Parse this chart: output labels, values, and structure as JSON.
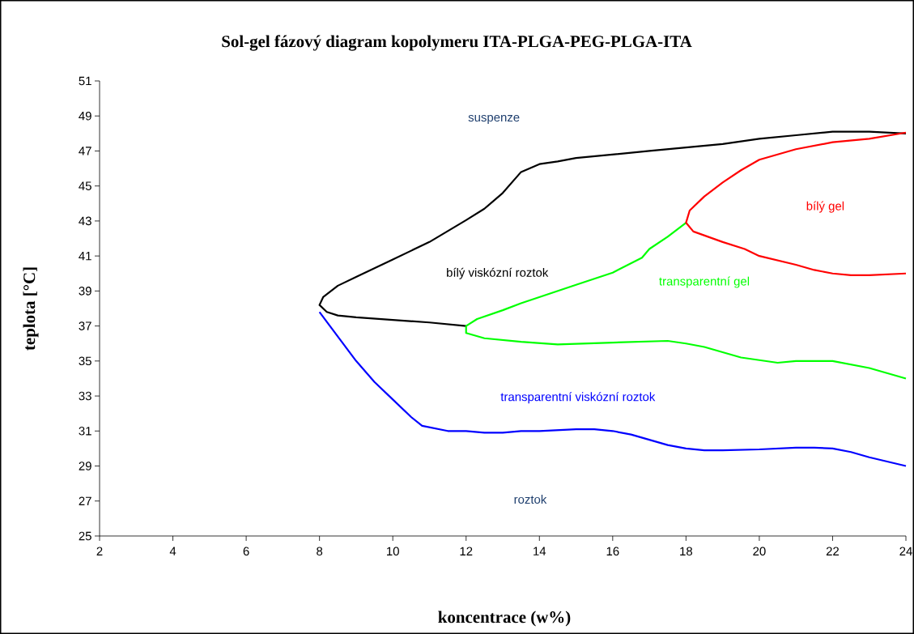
{
  "chart_data": {
    "type": "line",
    "title": "Sol-gel fázový diagram kopolymeru ITA-PLGA-PEG-PLGA-ITA",
    "xlabel": "koncentrace (w%)",
    "ylabel": "teplota [°C]",
    "xlim": [
      2,
      24
    ],
    "ylim": [
      25,
      51
    ],
    "xticks": [
      2,
      4,
      6,
      8,
      10,
      12,
      14,
      16,
      18,
      20,
      22,
      24
    ],
    "yticks": [
      25,
      27,
      29,
      31,
      33,
      35,
      37,
      39,
      41,
      43,
      45,
      47,
      49,
      51
    ],
    "grid": false,
    "marker": "none",
    "line_style": "solid",
    "series": [
      {
        "color": "#000000",
        "x": [
          12,
          11,
          10,
          9,
          8.5,
          8.2,
          8,
          8.1,
          8.5,
          9,
          10,
          11,
          12,
          12.5,
          13,
          13.5,
          14,
          14.5,
          15,
          16,
          17,
          18,
          19,
          20,
          21,
          22,
          23,
          24
        ],
        "values": [
          37.0,
          37.2,
          37.35,
          37.5,
          37.6,
          37.8,
          38.2,
          38.65,
          39.3,
          39.8,
          40.8,
          41.8,
          43.05,
          43.7,
          44.6,
          45.8,
          46.25,
          46.4,
          46.6,
          46.8,
          47.0,
          47.2,
          47.4,
          47.7,
          47.9,
          48.1,
          48.1,
          48.0
        ]
      },
      {
        "color": "#00ff00",
        "x": [
          18,
          17.5,
          17,
          16.8,
          16,
          15,
          14,
          13.5,
          13,
          12.3,
          12,
          12,
          12.5,
          13.5,
          14.5,
          16,
          17.5,
          18,
          18.5,
          19.5,
          20.5,
          21,
          22,
          23,
          24
        ],
        "values": [
          42.9,
          42.1,
          41.4,
          40.9,
          40.05,
          39.35,
          38.65,
          38.3,
          37.9,
          37.4,
          37.0,
          36.6,
          36.3,
          36.1,
          35.95,
          36.05,
          36.15,
          36.0,
          35.8,
          35.2,
          34.9,
          35.0,
          35.0,
          34.6,
          34.0
        ]
      },
      {
        "color": "#ff0000",
        "x": [
          24,
          23,
          22,
          21,
          20,
          19.5,
          19,
          18.5,
          18.1,
          18,
          18.2,
          19,
          19.6,
          20,
          21,
          21.5,
          22,
          22.5,
          23,
          24
        ],
        "values": [
          48.05,
          47.7,
          47.5,
          47.1,
          46.5,
          45.9,
          45.2,
          44.4,
          43.6,
          42.9,
          42.4,
          41.8,
          41.4,
          41.0,
          40.5,
          40.2,
          40.0,
          39.9,
          39.9,
          40.0
        ]
      },
      {
        "color": "#0000ff",
        "x": [
          8,
          8.5,
          9,
          9.5,
          10,
          10.5,
          10.8,
          11.5,
          12,
          12.5,
          13,
          13.5,
          14,
          15,
          15.5,
          16,
          16.5,
          17,
          17.5,
          18,
          18.5,
          19,
          20,
          21,
          21.5,
          22,
          22.5,
          23,
          24
        ],
        "values": [
          37.8,
          36.4,
          35.0,
          33.8,
          32.8,
          31.8,
          31.3,
          31.0,
          31.0,
          30.9,
          30.9,
          31.0,
          31.0,
          31.1,
          31.1,
          31.0,
          30.8,
          30.5,
          30.2,
          30.0,
          29.9,
          29.9,
          29.95,
          30.05,
          30.05,
          30.0,
          29.8,
          29.5,
          29.0
        ]
      }
    ],
    "annotations": [
      "suspenze",
      "bílý viskózní roztok",
      "bílý gel",
      "transparentní gel",
      "transparentní viskózní roztok",
      "roztok"
    ]
  }
}
